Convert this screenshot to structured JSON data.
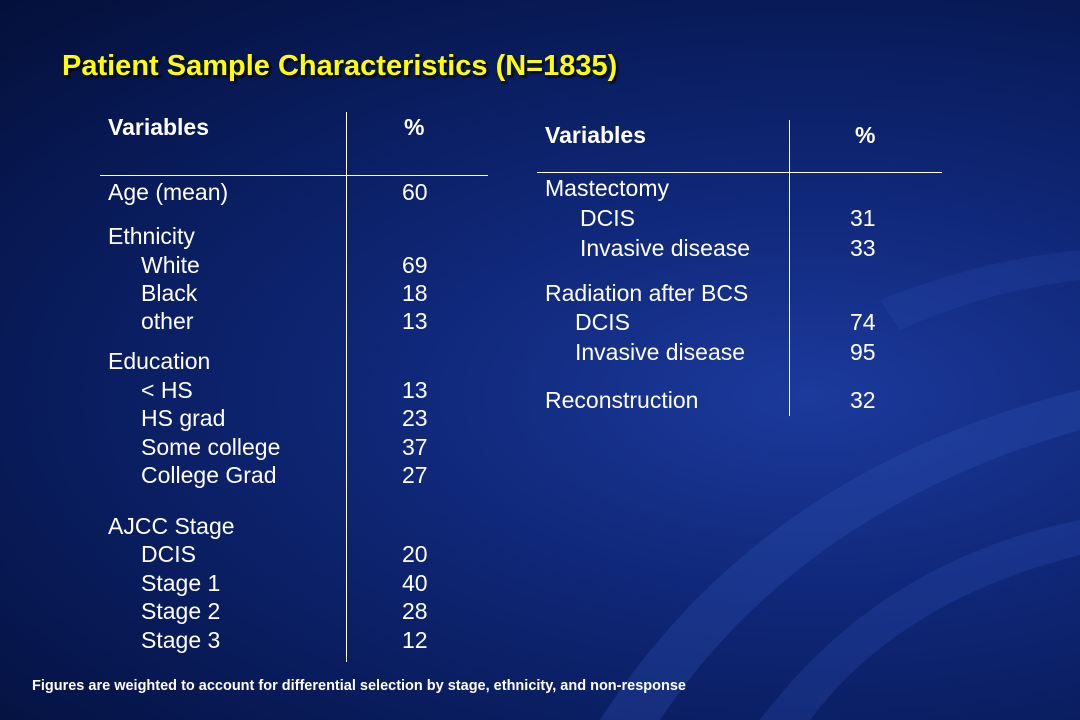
{
  "title": "Patient Sample Characteristics (N=1835)",
  "left_table": {
    "header_variable": "Variables",
    "header_percent": "%",
    "rows": [
      {
        "label": "Age (mean)",
        "value": "60"
      },
      {
        "label": "Ethnicity",
        "value": ""
      },
      {
        "label": "White",
        "value": "69"
      },
      {
        "label": "Black",
        "value": "18"
      },
      {
        "label": "other",
        "value": "13"
      },
      {
        "label": "Education",
        "value": ""
      },
      {
        "label": "< HS",
        "value": "13"
      },
      {
        "label": "HS grad",
        "value": "23"
      },
      {
        "label": "Some college",
        "value": "37"
      },
      {
        "label": "College Grad",
        "value": "27"
      },
      {
        "label": "AJCC Stage",
        "value": ""
      },
      {
        "label": "DCIS",
        "value": "20"
      },
      {
        "label": "Stage 1",
        "value": "40"
      },
      {
        "label": "Stage 2",
        "value": "28"
      },
      {
        "label": "Stage 3",
        "value": "12"
      }
    ]
  },
  "right_table": {
    "header_variable": "Variables",
    "header_percent": "%",
    "rows": [
      {
        "label": "Mastectomy",
        "value": ""
      },
      {
        "label": "DCIS",
        "value": "31"
      },
      {
        "label": "Invasive disease",
        "value": "33"
      },
      {
        "label": "Radiation after BCS",
        "value": ""
      },
      {
        "label": "DCIS",
        "value": "74"
      },
      {
        "label": "Invasive disease",
        "value": "95"
      },
      {
        "label": "Reconstruction",
        "value": "32"
      }
    ]
  },
  "footnote": "Figures are weighted to account for differential selection by stage, ethnicity, and non-response",
  "colors": {
    "title": "#ffff00",
    "text": "#ffffff",
    "background": "#10287a"
  }
}
